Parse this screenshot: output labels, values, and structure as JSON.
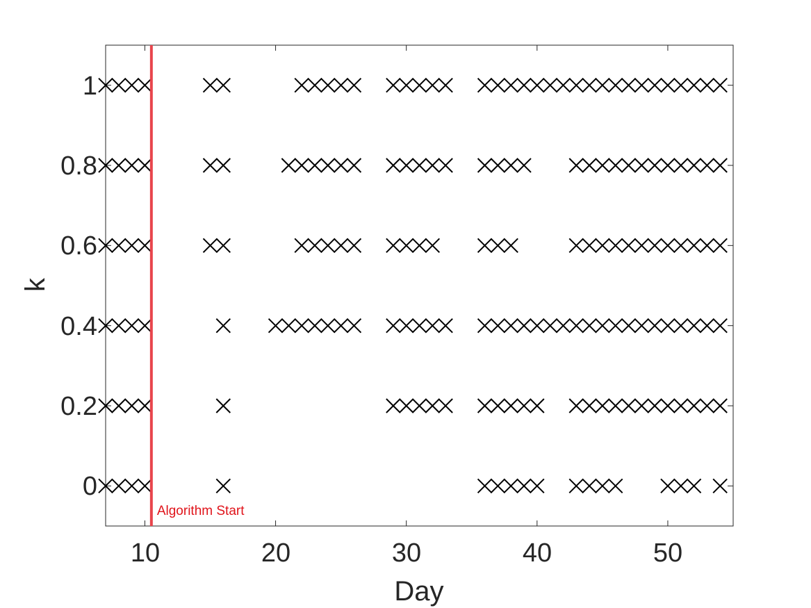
{
  "chart_data": {
    "type": "scatter",
    "marker": "x",
    "xlabel": "Day",
    "ylabel": "k",
    "xlim": [
      7,
      55
    ],
    "ylim": [
      -0.1,
      1.1
    ],
    "xticks": [
      "10",
      "20",
      "30",
      "40",
      "50"
    ],
    "yticks": [
      "0",
      "0.2",
      "0.4",
      "0.6",
      "0.8",
      "1"
    ],
    "grid": false,
    "box": true,
    "colors": {
      "marker": "#000000",
      "vline": "#e8454c",
      "annotation": "#e0141b",
      "text": "#262626"
    },
    "vline": {
      "x": 10.5,
      "label": "Algorithm Start"
    },
    "series": [
      {
        "k": 1,
        "days": [
          7,
          8,
          9,
          10,
          15,
          16,
          22,
          23,
          24,
          25,
          26,
          29,
          30,
          31,
          32,
          33,
          36,
          37,
          38,
          39,
          40,
          41,
          42,
          43,
          44,
          45,
          46,
          47,
          48,
          49,
          50,
          51,
          52,
          53,
          54
        ]
      },
      {
        "k": 0.8,
        "days": [
          7,
          8,
          9,
          10,
          15,
          16,
          21,
          22,
          23,
          24,
          25,
          26,
          29,
          30,
          31,
          32,
          33,
          36,
          37,
          38,
          39,
          43,
          44,
          45,
          46,
          47,
          48,
          49,
          50,
          51,
          52,
          53,
          54
        ]
      },
      {
        "k": 0.6,
        "days": [
          7,
          8,
          9,
          10,
          15,
          16,
          22,
          23,
          24,
          25,
          26,
          29,
          30,
          31,
          32,
          36,
          37,
          38,
          43,
          44,
          45,
          46,
          47,
          48,
          49,
          50,
          51,
          52,
          53,
          54
        ]
      },
      {
        "k": 0.4,
        "days": [
          7,
          8,
          9,
          10,
          16,
          20,
          21,
          22,
          23,
          24,
          25,
          26,
          29,
          30,
          31,
          32,
          33,
          36,
          37,
          38,
          39,
          40,
          41,
          42,
          43,
          44,
          45,
          46,
          47,
          48,
          49,
          50,
          51,
          52,
          53,
          54
        ]
      },
      {
        "k": 0.2,
        "days": [
          7,
          8,
          9,
          10,
          16,
          29,
          30,
          31,
          32,
          33,
          36,
          37,
          38,
          39,
          40,
          43,
          44,
          45,
          46,
          47,
          48,
          49,
          50,
          51,
          52,
          53,
          54
        ]
      },
      {
        "k": 0,
        "days": [
          7,
          8,
          9,
          10,
          16,
          36,
          37,
          38,
          39,
          40,
          43,
          44,
          45,
          46,
          50,
          51,
          52,
          54
        ]
      }
    ]
  }
}
